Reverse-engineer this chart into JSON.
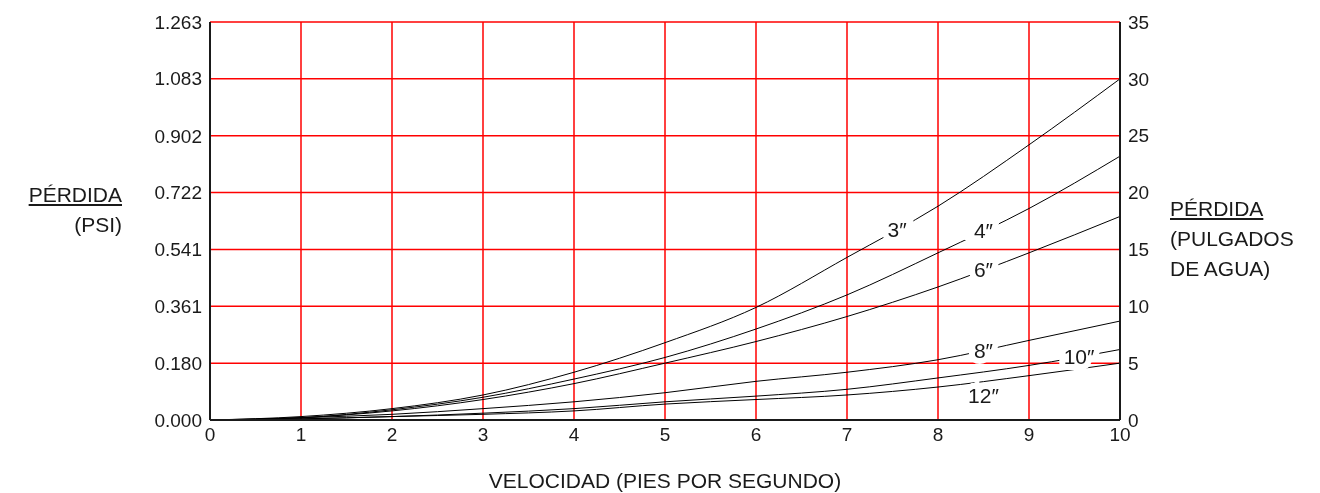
{
  "chart_data": {
    "type": "line",
    "xlabel": "VELOCIDAD (PIES POR SEGUNDO)",
    "ylabel": "PÉRDIDA (PSI)",
    "y2label": "PÉRDIDA (PULGADOS DE AGUA)",
    "x": [
      0,
      1,
      2,
      3,
      4,
      5,
      6,
      7,
      8,
      9,
      10
    ],
    "series": [
      {
        "name": "3″",
        "color": "#000000",
        "axis": "y2",
        "values": [
          0,
          0.3,
          1.0,
          2.2,
          4.2,
          6.8,
          9.9,
          14.3,
          18.8,
          24.2,
          30
        ]
      },
      {
        "name": "4″",
        "color": "#000000",
        "axis": "y2",
        "values": [
          0,
          0.2,
          0.9,
          2.0,
          3.6,
          5.5,
          8.0,
          11.0,
          14.7,
          18.6,
          23.2
        ]
      },
      {
        "name": "6″",
        "color": "#000000",
        "axis": "y2",
        "values": [
          0,
          0.2,
          0.8,
          1.8,
          3.2,
          5.0,
          6.9,
          9.1,
          11.7,
          14.7,
          17.9
        ]
      },
      {
        "name": "8″",
        "color": "#000000",
        "axis": "y2",
        "values": [
          0,
          0.2,
          0.5,
          1.0,
          1.6,
          2.4,
          3.4,
          4.2,
          5.3,
          7.0,
          8.7
        ]
      },
      {
        "name": "10″",
        "color": "#000000",
        "axis": "y2",
        "values": [
          0,
          0.1,
          0.3,
          0.6,
          1.0,
          1.6,
          2.1,
          2.7,
          3.7,
          4.8,
          6.2
        ]
      },
      {
        "name": "12″",
        "color": "#000000",
        "axis": "y2",
        "values": [
          0,
          0.1,
          0.3,
          0.5,
          0.8,
          1.4,
          1.8,
          2.2,
          2.9,
          3.9,
          5.0
        ]
      }
    ],
    "xlim": [
      0,
      10
    ],
    "xticks": [
      0,
      1,
      2,
      3,
      4,
      5,
      6,
      7,
      8,
      9,
      10
    ],
    "ylim": [
      0,
      1.263
    ],
    "yticks": [
      {
        "value": 0,
        "label": "0.000"
      },
      {
        "value": 0.18,
        "label": "0.180"
      },
      {
        "value": 0.361,
        "label": "0.361"
      },
      {
        "value": 0.541,
        "label": "0.541"
      },
      {
        "value": 0.722,
        "label": "0.722"
      },
      {
        "value": 0.902,
        "label": "0.902"
      },
      {
        "value": 1.083,
        "label": "1.083"
      },
      {
        "value": 1.263,
        "label": "1.263"
      }
    ],
    "y2lim": [
      0,
      35
    ],
    "y2ticks": [
      0,
      5,
      10,
      15,
      20,
      25,
      30,
      35
    ],
    "grid": true,
    "marker": "none",
    "line_style": "solid"
  }
}
